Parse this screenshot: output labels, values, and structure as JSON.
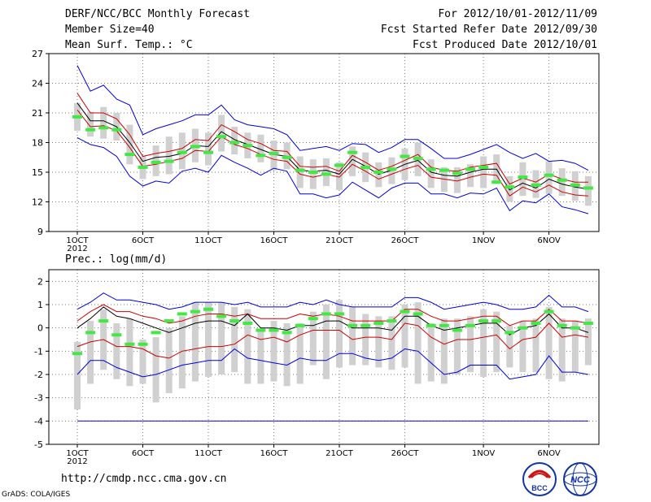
{
  "header": {
    "title": "DERF/NCC/BCC Monthly Forecast",
    "member_size": "Member Size=40",
    "variable": "Mean Surf. Temp.: °C",
    "period": "For 2012/10/01-2012/11/09",
    "start_date": "Fcst Started Refer Date 2012/09/30",
    "produced_date": "Fcst Produced Date 2012/10/01"
  },
  "footer": {
    "url": "http://cmdp.ncc.cma.gov.cn",
    "credit": "GrADS: COLA/IGES"
  },
  "logos": {
    "left_text": "BCC",
    "right_text": "NCC"
  },
  "colors": {
    "spread": "#0000dd",
    "band": "#cc0000",
    "mean": "#000000",
    "box": "#d0d0d0",
    "median": "#44e844"
  },
  "chart_data": [
    {
      "type": "line",
      "title": "Mean Surf. Temp.: °C",
      "ylim": [
        9,
        27
      ],
      "yticks": [
        "9",
        "12",
        "15",
        "18",
        "21",
        "24",
        "27"
      ],
      "xticks": [
        {
          "day": 1,
          "label": "1OCT",
          "sub": "2012"
        },
        {
          "day": 6,
          "label": "6OCT"
        },
        {
          "day": 11,
          "label": "11OCT"
        },
        {
          "day": 16,
          "label": "16OCT"
        },
        {
          "day": 21,
          "label": "21OCT"
        },
        {
          "day": 26,
          "label": "26OCT"
        },
        {
          "day": 32,
          "label": "1NOV"
        },
        {
          "day": 37,
          "label": "6NOV"
        }
      ],
      "days": 40,
      "series": [
        {
          "name": "max",
          "values": [
            25.8,
            23.2,
            23.8,
            22.4,
            21.8,
            18.8,
            19.4,
            19.8,
            20.2,
            20.8,
            20.8,
            21.8,
            20.3,
            19.8,
            19.6,
            19.4,
            18.8,
            17.2,
            17.4,
            17.6,
            17.2,
            17.9,
            17.8,
            17.0,
            17.5,
            18.3,
            18.3,
            17.4,
            16.4,
            16.4,
            16.8,
            17.3,
            17.8,
            17.0,
            16.4,
            16.9,
            16.1,
            16.2,
            15.9,
            15.2
          ]
        },
        {
          "name": "upper",
          "values": [
            23.0,
            21.0,
            21.0,
            20.4,
            18.8,
            16.6,
            16.9,
            17.1,
            17.4,
            18.3,
            18.2,
            19.8,
            19.1,
            18.3,
            17.9,
            17.2,
            17.1,
            15.6,
            15.5,
            15.6,
            15.1,
            16.7,
            16.0,
            15.2,
            15.6,
            16.2,
            16.8,
            15.5,
            15.2,
            15.1,
            15.5,
            15.7,
            15.9,
            13.8,
            14.4,
            14.0,
            14.8,
            14.3,
            14.0,
            14.0
          ]
        },
        {
          "name": "mean",
          "values": [
            22.0,
            20.2,
            20.2,
            19.6,
            18.0,
            16.1,
            16.5,
            16.6,
            16.9,
            17.7,
            17.6,
            19.1,
            18.3,
            17.8,
            17.3,
            16.8,
            16.6,
            15.2,
            15.1,
            15.2,
            14.8,
            16.3,
            15.6,
            14.8,
            15.2,
            15.8,
            16.2,
            15.0,
            14.7,
            14.6,
            15.0,
            15.3,
            15.3,
            13.2,
            13.9,
            13.4,
            14.3,
            13.8,
            13.5,
            13.3
          ]
        },
        {
          "name": "lower",
          "values": [
            21.3,
            19.6,
            19.7,
            19.2,
            17.5,
            15.6,
            15.8,
            16.1,
            16.4,
            17.2,
            17.1,
            18.6,
            17.8,
            17.4,
            16.8,
            16.3,
            16.1,
            14.8,
            14.5,
            14.8,
            14.5,
            15.8,
            15.1,
            14.3,
            14.8,
            15.3,
            15.7,
            14.5,
            14.3,
            14.1,
            14.5,
            14.8,
            14.7,
            12.6,
            13.5,
            13.0,
            13.7,
            13.0,
            12.7,
            12.6
          ]
        },
        {
          "name": "min",
          "values": [
            18.5,
            17.8,
            17.5,
            16.6,
            14.6,
            13.6,
            14.1,
            13.9,
            15.1,
            15.4,
            15.0,
            16.7,
            16.0,
            15.4,
            14.7,
            15.4,
            15.1,
            12.8,
            12.8,
            12.4,
            12.7,
            14.0,
            13.2,
            12.4,
            13.4,
            13.9,
            13.9,
            12.8,
            12.8,
            12.4,
            12.9,
            12.8,
            13.4,
            11.1,
            12.1,
            11.9,
            12.8,
            11.5,
            11.2,
            10.8
          ]
        }
      ],
      "boxes": {
        "lo": [
          19.2,
          18.6,
          18.4,
          18.2,
          15.8,
          14.3,
          14.6,
          14.8,
          15.3,
          16.0,
          15.7,
          17.1,
          16.8,
          16.4,
          16.0,
          15.2,
          15.3,
          13.4,
          13.3,
          13.6,
          13.2,
          14.6,
          14.0,
          13.5,
          13.8,
          14.2,
          14.6,
          13.4,
          13.0,
          12.9,
          13.5,
          13.4,
          13.8,
          12.0,
          12.6,
          12.4,
          12.8,
          12.6,
          12.1,
          11.6
        ],
        "hi": [
          22.0,
          21.1,
          21.6,
          21.0,
          19.8,
          16.6,
          17.7,
          18.6,
          19.0,
          19.4,
          19.0,
          20.8,
          19.6,
          19.0,
          18.8,
          18.2,
          18.0,
          16.6,
          16.3,
          16.4,
          16.0,
          17.6,
          17.0,
          16.0,
          16.5,
          17.4,
          18.0,
          16.3,
          15.5,
          15.5,
          15.8,
          16.6,
          16.8,
          14.6,
          16.0,
          15.2,
          16.1,
          15.4,
          15.1,
          14.6
        ],
        "median": [
          20.6,
          19.3,
          19.5,
          19.3,
          16.8,
          15.5,
          16.0,
          16.1,
          17.0,
          17.6,
          17.0,
          18.6,
          18.0,
          17.7,
          16.7,
          16.9,
          16.5,
          15.2,
          15.0,
          14.8,
          15.7,
          17.0,
          15.5,
          15.0,
          15.3,
          16.6,
          16.4,
          15.3,
          15.2,
          14.9,
          15.3,
          15.5,
          14.0,
          13.5,
          14.5,
          13.7,
          14.7,
          14.2,
          13.7,
          13.4
        ]
      }
    },
    {
      "type": "line",
      "title": "Prec.: log(mm/d)",
      "ylim": [
        -5,
        2.5
      ],
      "yticks": [
        "-5",
        "-4",
        "-3",
        "-2",
        "-1",
        "0",
        "1",
        "2"
      ],
      "xticks": [
        {
          "day": 1,
          "label": "1OCT",
          "sub": "2012"
        },
        {
          "day": 6,
          "label": "6OCT"
        },
        {
          "day": 11,
          "label": "11OCT"
        },
        {
          "day": 16,
          "label": "16OCT"
        },
        {
          "day": 21,
          "label": "21OCT"
        },
        {
          "day": 26,
          "label": "26OCT"
        },
        {
          "day": 32,
          "label": "1NOV"
        },
        {
          "day": 37,
          "label": "6NOV"
        }
      ],
      "days": 40,
      "series": [
        {
          "name": "max",
          "values": [
            0.8,
            1.1,
            1.5,
            1.2,
            1.2,
            1.1,
            1.0,
            0.8,
            0.9,
            1.1,
            1.1,
            1.1,
            1.0,
            1.1,
            0.9,
            0.9,
            0.9,
            1.1,
            1.0,
            1.2,
            1.0,
            0.9,
            0.9,
            0.9,
            0.9,
            1.3,
            1.3,
            1.1,
            0.8,
            0.9,
            1.0,
            1.1,
            1.0,
            0.8,
            0.8,
            0.9,
            1.4,
            0.9,
            0.9,
            0.7
          ]
        },
        {
          "name": "upper",
          "values": [
            0.3,
            0.7,
            1.0,
            0.7,
            0.7,
            0.5,
            0.4,
            0.2,
            0.3,
            0.5,
            0.6,
            0.6,
            0.5,
            0.6,
            0.4,
            0.4,
            0.4,
            0.6,
            0.5,
            0.6,
            0.5,
            0.3,
            0.3,
            0.3,
            0.3,
            0.8,
            0.8,
            0.5,
            0.3,
            0.3,
            0.4,
            0.5,
            0.5,
            0.1,
            0.3,
            0.3,
            0.8,
            0.3,
            0.3,
            0.2
          ]
        },
        {
          "name": "mean",
          "values": [
            0.0,
            0.4,
            0.9,
            0.5,
            0.4,
            0.2,
            0.0,
            -0.2,
            0.0,
            0.2,
            0.3,
            0.3,
            0.1,
            0.6,
            0.0,
            0.0,
            -0.1,
            0.1,
            0.1,
            0.3,
            0.3,
            0.0,
            0.0,
            0.0,
            -0.1,
            0.5,
            0.5,
            0.1,
            -0.1,
            0.0,
            0.1,
            0.2,
            0.2,
            -0.3,
            0.0,
            0.1,
            0.6,
            0.0,
            0.0,
            -0.2
          ]
        },
        {
          "name": "lower",
          "values": [
            -0.8,
            -0.6,
            -0.5,
            -0.8,
            -0.8,
            -0.9,
            -1.2,
            -1.3,
            -1.0,
            -0.9,
            -0.8,
            -0.8,
            -0.7,
            -0.3,
            -0.5,
            -0.4,
            -0.6,
            -0.3,
            -0.1,
            -0.1,
            -0.1,
            -0.5,
            -0.4,
            -0.4,
            -0.5,
            0.2,
            0.1,
            -0.4,
            -0.7,
            -0.5,
            -0.5,
            -0.4,
            -0.3,
            -0.9,
            -0.5,
            -0.4,
            0.2,
            -0.4,
            -0.3,
            -0.4
          ]
        },
        {
          "name": "min",
          "values": [
            -2.0,
            -1.4,
            -1.4,
            -1.7,
            -1.9,
            -2.1,
            -2.0,
            -1.8,
            -1.6,
            -1.5,
            -1.4,
            -1.4,
            -0.9,
            -1.3,
            -1.4,
            -1.5,
            -1.6,
            -1.3,
            -1.4,
            -1.4,
            -1.1,
            -1.1,
            -1.3,
            -1.4,
            -1.3,
            -0.9,
            -1.0,
            -1.5,
            -2.0,
            -1.9,
            -1.6,
            -1.6,
            -1.6,
            -2.2,
            -2.1,
            -2.0,
            -1.2,
            -1.9,
            -1.9,
            -2.0
          ]
        },
        {
          "name": "floor",
          "values": [
            -4,
            -4,
            -4,
            -4,
            -4,
            -4,
            -4,
            -4,
            -4,
            -4,
            -4,
            -4,
            -4,
            -4,
            -4,
            -4,
            -4,
            -4,
            -4,
            -4,
            -4,
            -4,
            -4,
            -4,
            -4,
            -4,
            -4,
            -4,
            -4,
            -4,
            -4,
            -4,
            -4,
            -4,
            -4,
            -4,
            -4,
            -4,
            -4,
            -4
          ]
        }
      ],
      "boxes": {
        "lo": [
          -3.5,
          -2.4,
          -1.8,
          -2.2,
          -2.5,
          -2.4,
          -3.2,
          -2.8,
          -2.6,
          -2.3,
          -2.1,
          -2.0,
          -1.9,
          -2.4,
          -2.4,
          -2.3,
          -2.5,
          -2.4,
          -1.6,
          -2.2,
          -1.7,
          -1.6,
          -1.6,
          -1.7,
          -1.8,
          -1.7,
          -2.4,
          -2.3,
          -2.4,
          -2.0,
          -1.9,
          -2.1,
          -1.9,
          -1.7,
          -1.9,
          -1.9,
          -2.2,
          -2.3,
          -1.9,
          -1.6
        ],
        "hi": [
          -0.6,
          0.3,
          0.8,
          0.2,
          0.4,
          -0.5,
          -0.4,
          0.0,
          0.5,
          1.1,
          1.1,
          1.1,
          0.9,
          0.8,
          -0.1,
          0.3,
          0.2,
          0.2,
          0.7,
          1.0,
          1.2,
          0.9,
          0.6,
          0.5,
          0.5,
          1.0,
          1.1,
          0.2,
          0.4,
          0.4,
          0.5,
          0.8,
          0.7,
          0.1,
          0.3,
          0.4,
          0.9,
          0.4,
          0.3,
          0.4
        ],
        "median": [
          -1.1,
          -0.2,
          0.3,
          -0.3,
          -0.7,
          -0.7,
          -0.2,
          0.3,
          0.6,
          0.7,
          0.8,
          0.5,
          0.3,
          0.2,
          -0.1,
          -0.1,
          -0.2,
          0.1,
          0.4,
          0.6,
          0.6,
          0.1,
          0.1,
          0.2,
          0.3,
          0.7,
          0.6,
          0.1,
          0.1,
          -0.1,
          0.1,
          0.3,
          0.3,
          -0.2,
          0.0,
          0.2,
          0.7,
          0.1,
          0.0,
          0.2
        ]
      }
    }
  ]
}
